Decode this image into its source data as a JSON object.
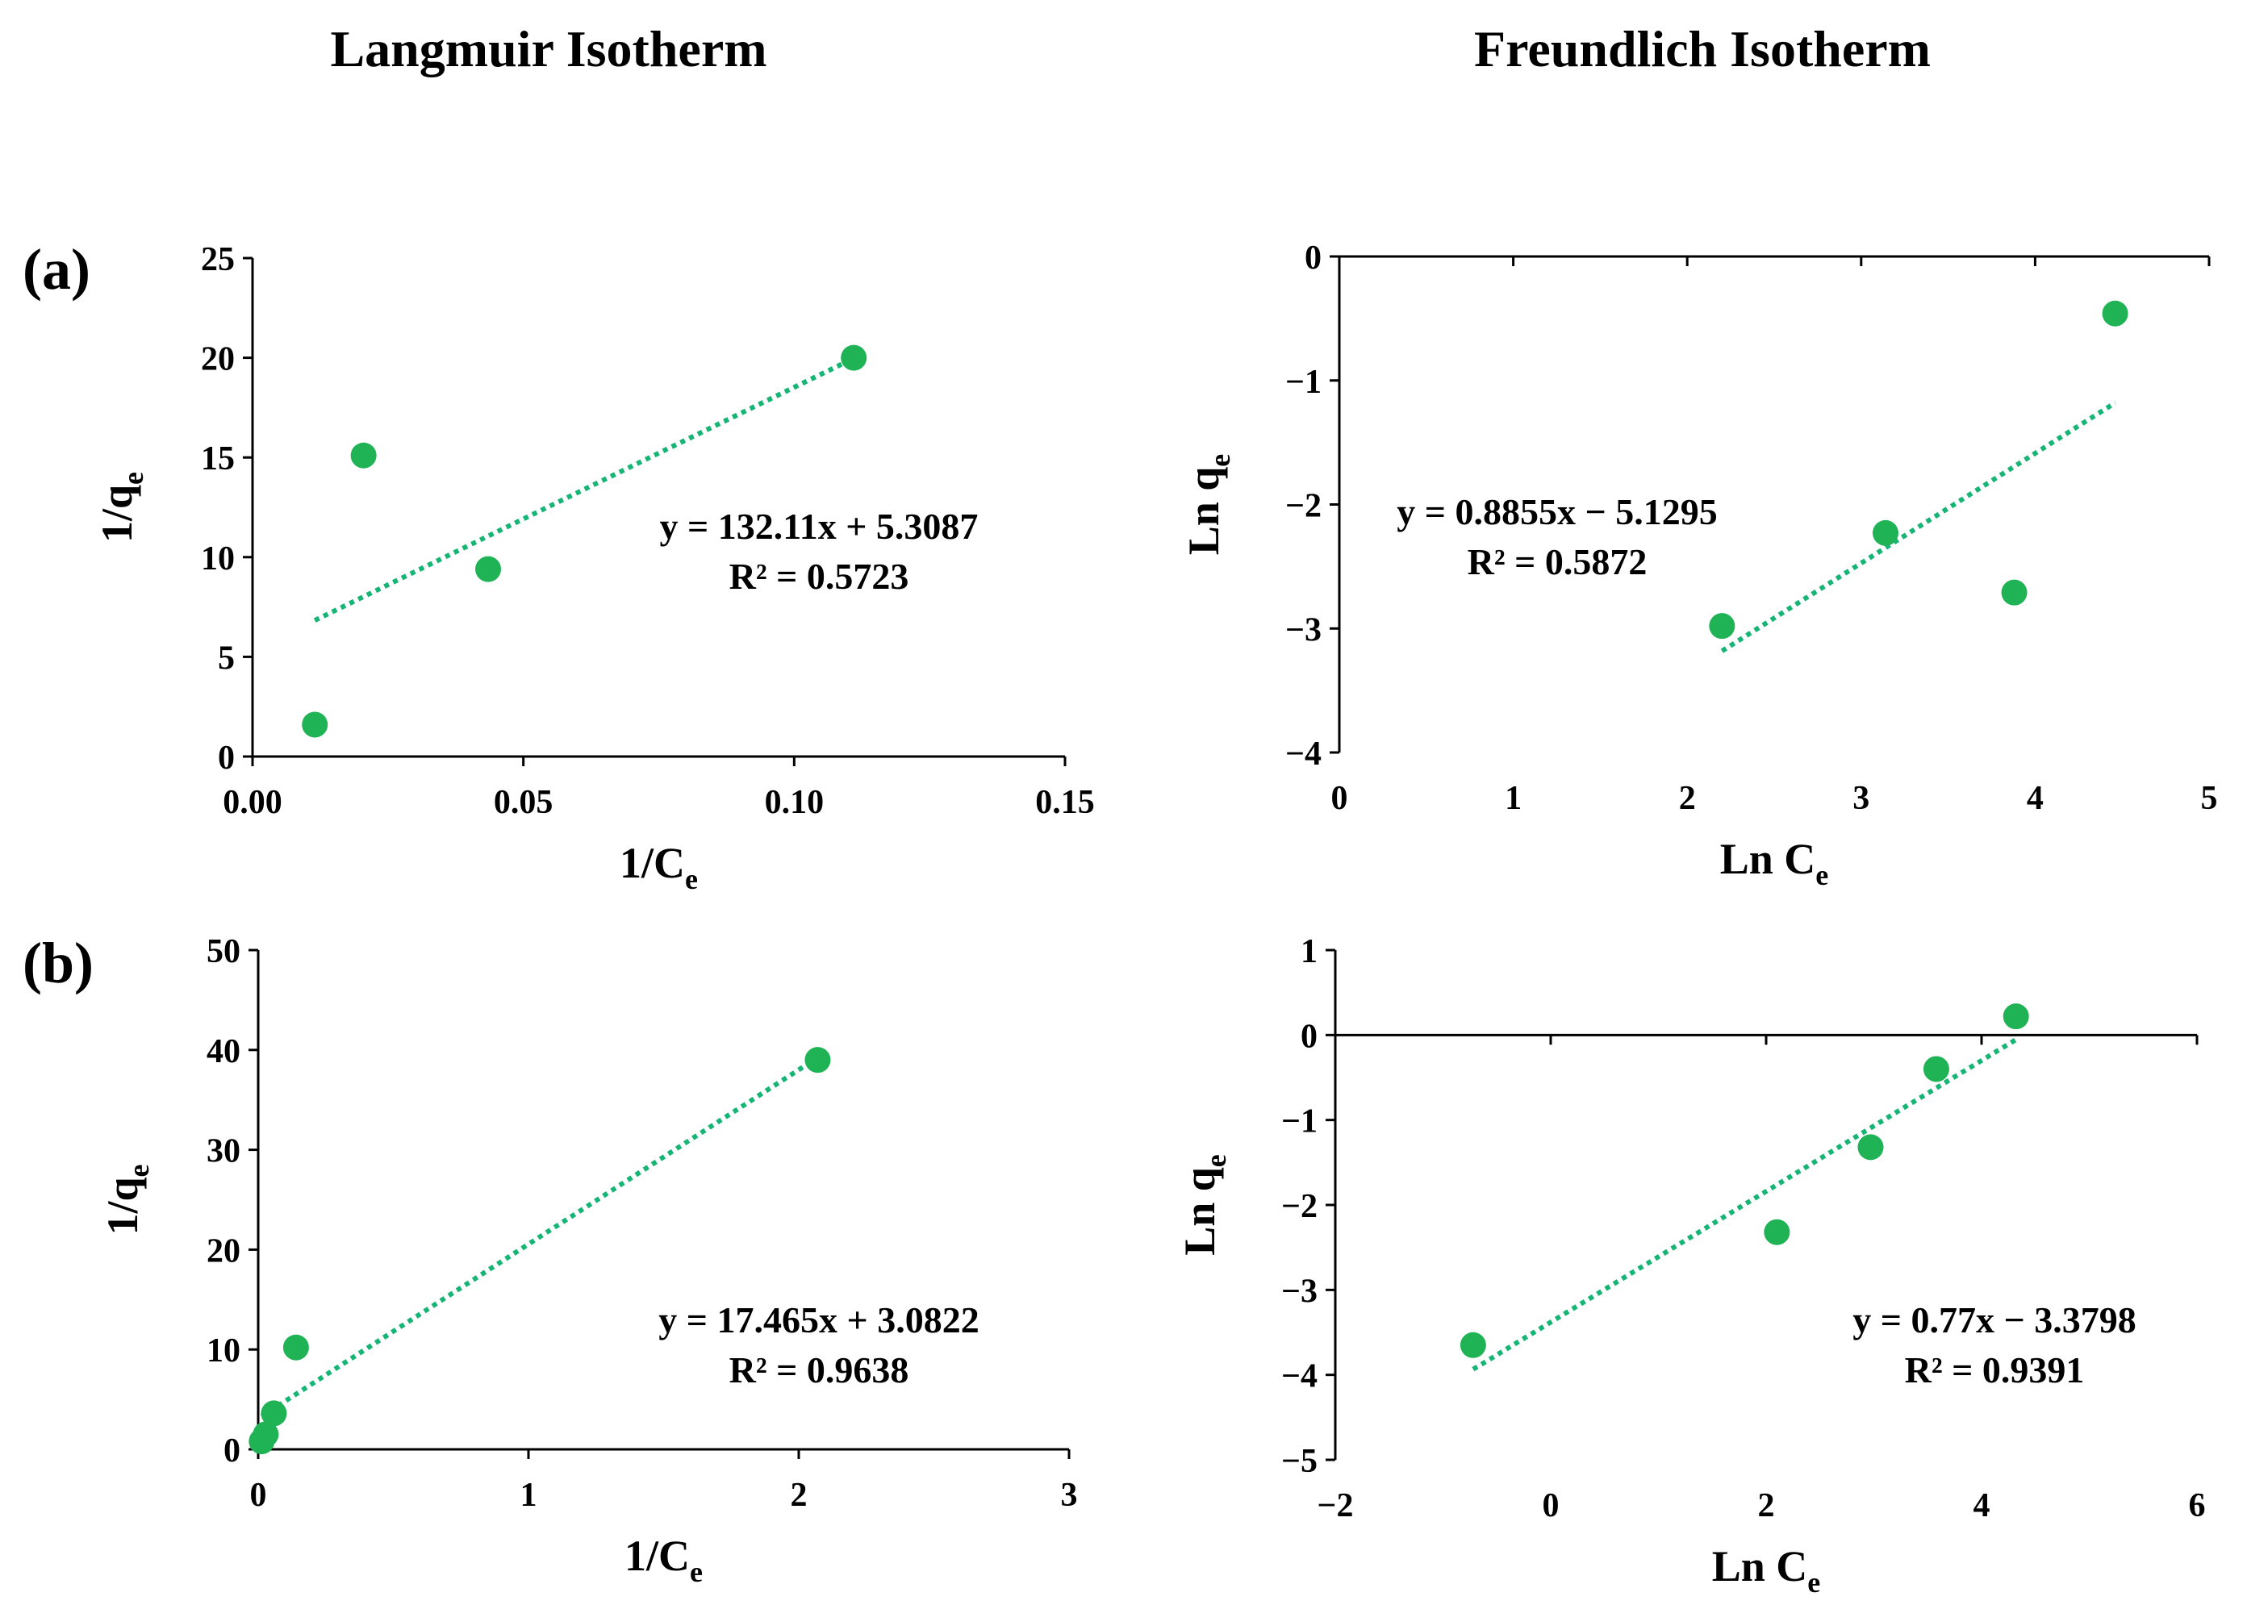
{
  "titles": {
    "left": "Langmuir Isotherm",
    "right": "Freundlich Isotherm"
  },
  "panel_labels": {
    "a": "(a)",
    "b": "(b)"
  },
  "colors": {
    "points": "#1fb356",
    "trendline": "#17b575",
    "axis": "#000000"
  },
  "chart_data": [
    {
      "type": "scatter",
      "panel": "(a)",
      "title": "Langmuir Isotherm",
      "xlabel": "1/Ce",
      "xlabel_main": "1/C",
      "xlabel_sub": "e",
      "ylabel": "1/qe",
      "ylabel_main": "1/q",
      "ylabel_sub": "e",
      "xlim": [
        0,
        0.15
      ],
      "ylim": [
        0,
        25
      ],
      "xticks": [
        0,
        0.05,
        0.1,
        0.15
      ],
      "xtick_labels": [
        "0.00",
        "0.05",
        "0.10",
        "0.15"
      ],
      "yticks": [
        0,
        5,
        10,
        15,
        20,
        25
      ],
      "ytick_labels": [
        "0",
        "5",
        "10",
        "15",
        "20",
        "25"
      ],
      "x": [
        0.0115,
        0.0205,
        0.0435,
        0.111
      ],
      "y": [
        1.6,
        15.1,
        9.4,
        20.0
      ],
      "trendline": {
        "slope": 132.11,
        "intercept": 5.3087,
        "x_range": [
          0.0115,
          0.111
        ]
      },
      "equation": "y = 132.11x + 5.3087",
      "r2": "R² = 0.5723"
    },
    {
      "type": "scatter",
      "panel": "(a)",
      "title": "Freundlich Isotherm",
      "xlabel": "Ln Ce",
      "xlabel_main": "Ln C",
      "xlabel_sub": "e",
      "ylabel": "Ln qe",
      "ylabel_main": "Ln q",
      "ylabel_sub": "e",
      "xlim": [
        0,
        5
      ],
      "ylim": [
        -4,
        0
      ],
      "xticks": [
        0,
        1,
        2,
        3,
        4,
        5
      ],
      "xtick_labels": [
        "0",
        "1",
        "2",
        "3",
        "4",
        "5"
      ],
      "yticks": [
        -4,
        -3,
        -2,
        -1,
        0
      ],
      "ytick_labels": [
        "-4",
        "-3",
        "-2",
        "-1",
        "0"
      ],
      "x": [
        2.2,
        3.14,
        3.88,
        4.46
      ],
      "y": [
        -2.98,
        -2.23,
        -2.71,
        -0.46
      ],
      "trendline": {
        "slope": 0.8855,
        "intercept": -5.1295,
        "x_range": [
          2.2,
          4.46
        ]
      },
      "equation": "y = 0.8855x - 5.1295",
      "r2": "R² = 0.5872"
    },
    {
      "type": "scatter",
      "panel": "(b)",
      "title": "Langmuir Isotherm",
      "xlabel": "1/Ce",
      "xlabel_main": "1/C",
      "xlabel_sub": "e",
      "ylabel": "1/qe",
      "ylabel_main": "1/q",
      "ylabel_sub": "e",
      "xlim": [
        0,
        3
      ],
      "ylim": [
        0,
        50
      ],
      "xticks": [
        0,
        1,
        2,
        3
      ],
      "xtick_labels": [
        "0",
        "1",
        "2",
        "3"
      ],
      "yticks": [
        0,
        10,
        20,
        30,
        40,
        50
      ],
      "ytick_labels": [
        "0",
        "10",
        "20",
        "30",
        "40",
        "50"
      ],
      "x": [
        0.013,
        0.028,
        0.058,
        0.14,
        2.07
      ],
      "y": [
        0.8,
        1.5,
        3.6,
        10.2,
        39.0
      ],
      "trendline": {
        "slope": 17.465,
        "intercept": 3.0822,
        "x_range": [
          0.013,
          2.07
        ]
      },
      "equation": "y = 17.465x + 3.0822",
      "r2": "R² = 0.9638"
    },
    {
      "type": "scatter",
      "panel": "(b)",
      "title": "Freundlich Isotherm",
      "xlabel": "Ln Ce",
      "xlabel_main": "Ln C",
      "xlabel_sub": "e",
      "ylabel": "Ln qe",
      "ylabel_main": "Ln q",
      "ylabel_sub": "e",
      "xlim": [
        -2,
        6
      ],
      "ylim": [
        -5,
        1
      ],
      "xticks": [
        -2,
        0,
        2,
        4,
        6
      ],
      "xtick_labels": [
        "-2",
        "0",
        "2",
        "4",
        "6"
      ],
      "yticks": [
        -5,
        -4,
        -3,
        -2,
        -1,
        0,
        1
      ],
      "ytick_labels": [
        "-5",
        "-4",
        "-3",
        "-2",
        "-1",
        "0",
        "1"
      ],
      "x": [
        -0.72,
        2.1,
        2.97,
        3.58,
        4.32
      ],
      "y": [
        -3.65,
        -2.32,
        -1.32,
        -0.4,
        0.22
      ],
      "trendline": {
        "slope": 0.77,
        "intercept": -3.3798,
        "x_range": [
          -0.72,
          4.32
        ]
      },
      "equation": "y = 0.77x - 3.3798",
      "r2": "R² = 0.9391"
    }
  ]
}
